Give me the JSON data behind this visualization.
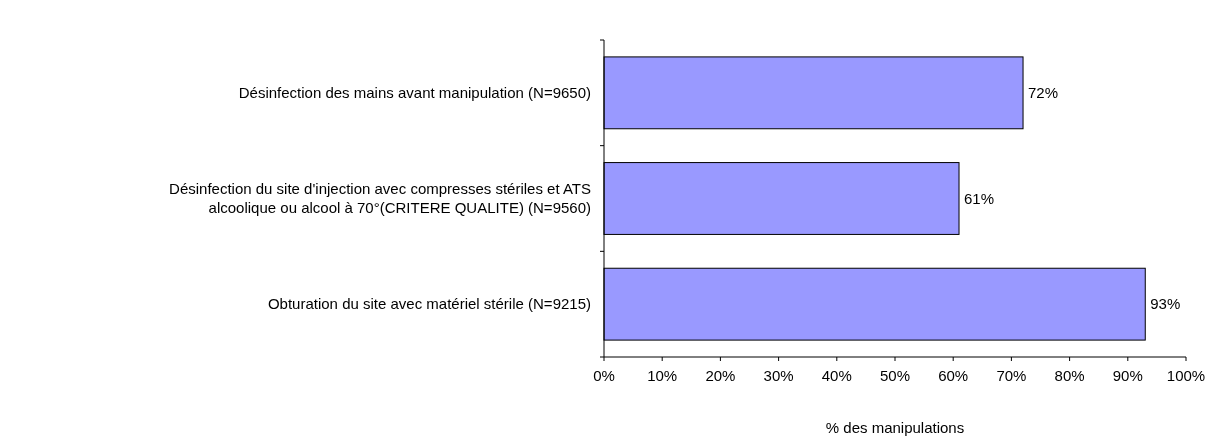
{
  "chart_data": {
    "type": "bar",
    "orientation": "horizontal",
    "categories": [
      "Désinfection des mains avant manipulation (N=9650)",
      "Désinfection du site d'injection avec compresses stériles et ATS alcoolique ou alcool à 70°(CRITERE QUALITE) (N=9560)",
      "Obturation du site avec matériel stérile (N=9215)"
    ],
    "values": [
      72,
      61,
      93
    ],
    "value_labels": [
      "72%",
      "61%",
      "93%"
    ],
    "color": "#9999ff",
    "xlabel": "% des manipulations",
    "xlim": [
      0,
      100
    ],
    "xticks": [
      {
        "value": 0,
        "label": "0%"
      },
      {
        "value": 10,
        "label": "10%"
      },
      {
        "value": 20,
        "label": "20%"
      },
      {
        "value": 30,
        "label": "30%"
      },
      {
        "value": 40,
        "label": "40%"
      },
      {
        "value": 50,
        "label": "50%"
      },
      {
        "value": 60,
        "label": "60%"
      },
      {
        "value": 70,
        "label": "70%"
      },
      {
        "value": 80,
        "label": "80%"
      },
      {
        "value": 90,
        "label": "90%"
      },
      {
        "value": 100,
        "label": "100%"
      }
    ],
    "grid": false
  }
}
